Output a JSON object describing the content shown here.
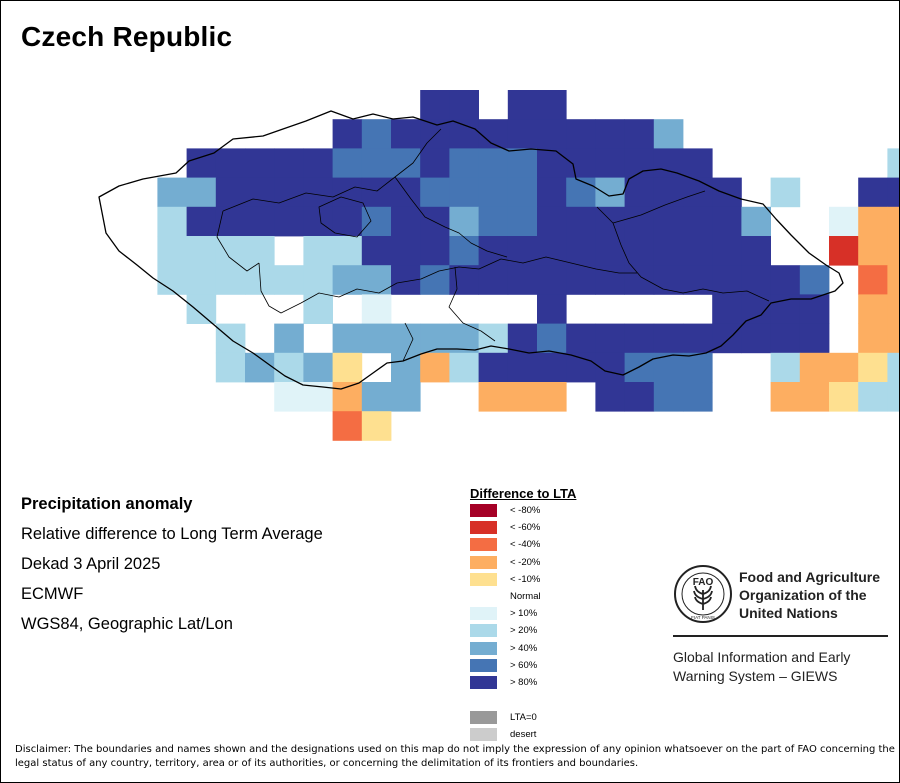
{
  "map": {
    "title": "Czech Republic"
  },
  "info": {
    "variable": "Precipitation anomaly",
    "description": "Relative difference to Long Term Average",
    "period": "Dekad 3 April 2025",
    "source": "ECMWF",
    "projection": "WGS84, Geographic Lat/Lon"
  },
  "legend": {
    "title": "Difference to LTA",
    "items": [
      {
        "label": "< -80%",
        "color": "#a50026"
      },
      {
        "label": "< -60%",
        "color": "#d73027"
      },
      {
        "label": "< -40%",
        "color": "#f46d43"
      },
      {
        "label": "< -20%",
        "color": "#fdae61"
      },
      {
        "label": "< -10%",
        "color": "#fee090"
      },
      {
        "label": "Normal",
        "color": "#ffffff"
      },
      {
        "label": "> 10%",
        "color": "#e0f3f8"
      },
      {
        "label": "> 20%",
        "color": "#abd9e9"
      },
      {
        "label": "> 40%",
        "color": "#74add1"
      },
      {
        "label": "> 60%",
        "color": "#4575b4"
      },
      {
        "label": "> 80%",
        "color": "#313695"
      }
    ],
    "extra_items": [
      {
        "label": "LTA=0",
        "color": "#999999"
      },
      {
        "label": "desert",
        "color": "#cccccc"
      }
    ]
  },
  "fao": {
    "logo_text": "FAO",
    "logo_motto": "FIAT PANIS",
    "name_lines": [
      "Food and Agriculture",
      "Organization of the",
      "United Nations"
    ],
    "giews_lines": [
      "Global Information and Early",
      "Warning System – GIEWS"
    ]
  },
  "disclaimer": "Disclaimer: The boundaries and names shown and the designations used on this map do not imply the expression of any opinion whatsoever on the part of FAO concerning the legal status of any country, territory, area or of its authorities, or concerning the delimitation of its frontiers and boundaries.",
  "grid": {
    "level_colors": [
      "#a50026",
      "#d73027",
      "#f46d43",
      "#fdae61",
      "#fee090",
      "#ffffff",
      "#e0f3f8",
      "#abd9e9",
      "#74add1",
      "#4575b4",
      "#313695"
    ],
    "rows": [
      "...........AA.AA......................",
      "........AXAAAAAAAAAW..................",
      "...AAAAAXXXAXXXAAAAAA......H.........",
      "..BBAAAAAAAXXXXAXBAAAA.H..AAB.........",
      "..HAAAAAAXAAGXXAAAAAAAB..IPPYP.......",
      "..HHHH.HHAAAXAAAAAAAAAA..1PPQ...........",
      "..HHHHHHBGAXAAAAAAAAAAAAC.2PP...........",
      "...H...H.J.....A.....AAAA.PPPPPPG.......",
      "....H.B.BBBBBHAXAAAAAAAAA.PPPGH.......",
      "....HBHBQ.BPHAAAAAXXX..HPPQHHHH......",
      "......JJPDG..PPP.AAXX..PPQHHH.......",
      "........3Q......................"
    ]
  }
}
